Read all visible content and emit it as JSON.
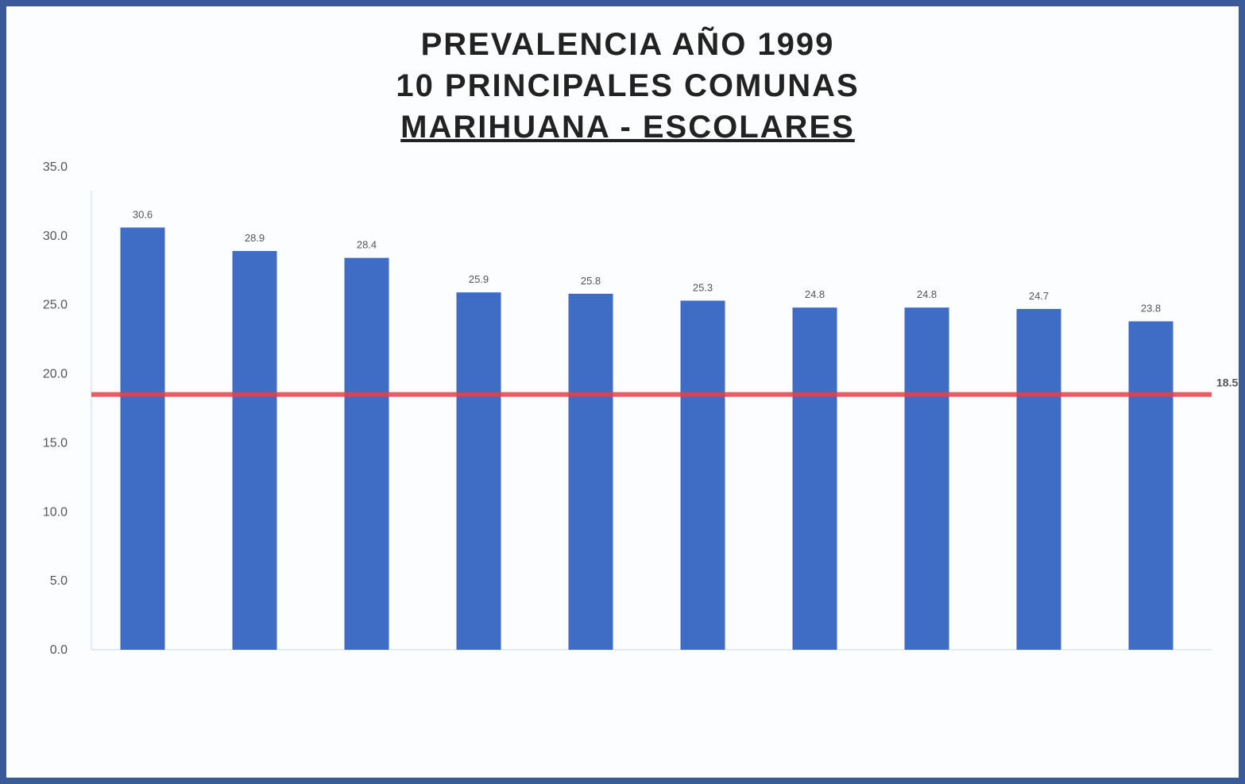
{
  "colors": {
    "bar": "#3f6cc4",
    "reference_line": "#e8404a",
    "frame": "#3a5a9a",
    "background": "#fcfdfe"
  },
  "chart_data": {
    "type": "bar",
    "title_lines": [
      "PREVALENCIA AÑO 1999",
      "10 PRINCIPALES COMUNAS",
      "MARIHUANA - ESCOLARES"
    ],
    "categories": [
      "",
      "",
      "",
      "",
      "",
      "",
      "",
      "",
      "",
      ""
    ],
    "values": [
      30.6,
      28.9,
      28.4,
      25.9,
      25.8,
      25.3,
      24.8,
      24.8,
      24.7,
      23.8
    ],
    "ylim": [
      0,
      35
    ],
    "y_ticks": [
      0,
      5,
      10,
      15,
      20,
      25,
      30,
      35
    ],
    "reference_line": 18.5,
    "grid": false,
    "legend": "none",
    "xlabel": "",
    "ylabel": ""
  }
}
